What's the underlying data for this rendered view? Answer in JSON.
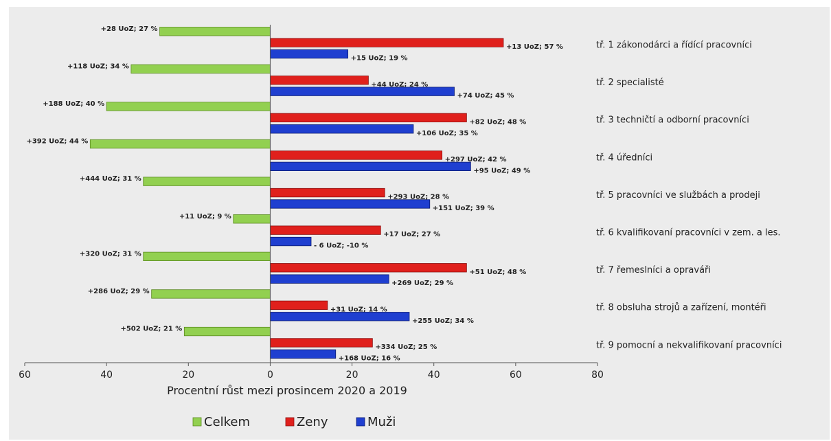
{
  "chart_data": {
    "type": "bar",
    "orientation": "horizontal",
    "xlabel": "Procentní růst mezi prosincem 2020 a 2019",
    "xlim": [
      -60,
      80
    ],
    "x_ticks": [
      -60,
      -40,
      -20,
      0,
      20,
      40,
      60,
      80
    ],
    "x_tick_labels": [
      "60",
      "40",
      "20",
      "0",
      "20",
      "40",
      "60",
      "80"
    ],
    "grid": false,
    "legend_position": "bottom",
    "categories": [
      "tř. 1 zákonodárci a řídící pracovníci",
      "tř. 2 specialisté",
      "tř. 3 techničtí a odborní pracovníci",
      "tř. 4 úředníci",
      "tř. 5 pracovníci ve službách a prodeji",
      "tř. 6 kvalifikovaní pracovníci v zem. a les.",
      "tř. 7 řemeslníci a opraváři",
      "tř. 8 obsluha strojů a zařízení, montéři",
      "tř. 9 pomocní a nekvalifikovaní pracovníci"
    ],
    "series": [
      {
        "name": "Celkem",
        "color": "#92d050",
        "values": [
          -27,
          -34,
          -40,
          -44,
          -31,
          -9,
          -31,
          -29,
          -21
        ],
        "labels": [
          "+28 UoZ; 27 %",
          "+118 UoZ; 34 %",
          "+188 UoZ; 40 %",
          "+392 UoZ; 44 %",
          "+444 UoZ; 31 %",
          "+11 UoZ; 9 %",
          "+320 UoZ; 31 %",
          "+286 UoZ; 29 %",
          "+502 UoZ; 21 %"
        ]
      },
      {
        "name": "Zeny",
        "color": "#e0201c",
        "values": [
          57,
          24,
          48,
          42,
          28,
          27,
          48,
          14,
          25
        ],
        "labels": [
          "+13 UoZ; 57 %",
          "+44 UoZ; 24 %",
          "+82 UoZ; 48 %",
          "+297 UoZ; 42 %",
          "+293 UoZ; 28 %",
          "+17 UoZ; 27 %",
          "+51 UoZ; 48 %",
          "+31 UoZ; 14 %",
          "+334 UoZ; 25 %"
        ]
      },
      {
        "name": "Muži",
        "color": "#1f3fd0",
        "values": [
          19,
          45,
          35,
          49,
          39,
          10,
          29,
          34,
          16
        ],
        "labels": [
          "+15 UoZ; 19 %",
          "+74 UoZ; 45 %",
          "+106 UoZ; 35 %",
          "+95 UoZ; 49 %",
          "+151 UoZ; 39 %",
          "- 6 UoZ; -10 %",
          "+269 UoZ; 29 %",
          "+255 UoZ; 34 %",
          "+168 UoZ; 16 %"
        ]
      }
    ]
  }
}
